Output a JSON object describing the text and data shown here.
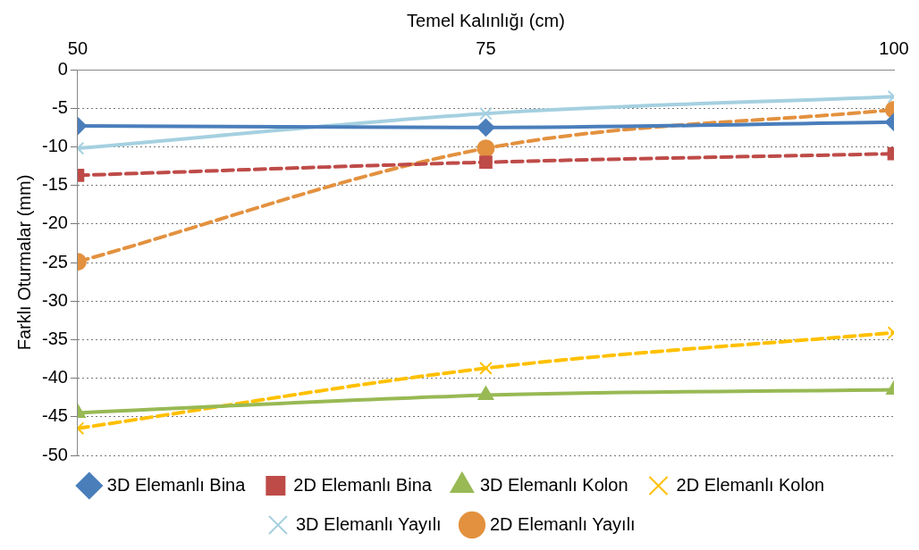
{
  "chart_data": {
    "type": "line",
    "xlabel": "Temel Kalınlığı (cm)",
    "ylabel": "Farklı Oturmalar (mm)",
    "x": [
      50,
      75,
      100
    ],
    "xlim": [
      50,
      100
    ],
    "xticks": [
      50,
      75,
      100
    ],
    "ylim": [
      -50,
      0
    ],
    "yticks": [
      0,
      -5,
      -10,
      -15,
      -20,
      -25,
      -30,
      -35,
      -40,
      -45,
      -50
    ],
    "grid": "y",
    "legend": "bottom",
    "series": [
      {
        "name": "3D Elemanlı Bina",
        "color": "#4a7ebb",
        "values": [
          -7.3,
          -7.5,
          -6.8
        ],
        "marker": "diamond",
        "line_style": "solid"
      },
      {
        "name": "2D Elemanlı Bina",
        "color": "#be4b48",
        "values": [
          -13.7,
          -12.0,
          -10.9
        ],
        "marker": "square",
        "line_style": "dashed"
      },
      {
        "name": "3D Elemanlı Kolon",
        "color": "#98b954",
        "values": [
          -44.5,
          -42.2,
          -41.5
        ],
        "marker": "triangle",
        "line_style": "solid"
      },
      {
        "name": "2D Elemanlı Kolon",
        "color": "#ffc000",
        "values": [
          -46.5,
          -38.7,
          -34.1
        ],
        "marker": "cross",
        "line_style": "dashed"
      },
      {
        "name": "3D Elemanlı Yayılı",
        "color": "#a5d0e0",
        "values": [
          -10.2,
          -5.7,
          -3.5
        ],
        "marker": "cross",
        "line_style": "solid"
      },
      {
        "name": "2D Elemanlı Yayılı",
        "color": "#e3913f",
        "values": [
          -24.9,
          -10.2,
          -5.2
        ],
        "marker": "circle",
        "line_style": "dashed"
      }
    ]
  }
}
